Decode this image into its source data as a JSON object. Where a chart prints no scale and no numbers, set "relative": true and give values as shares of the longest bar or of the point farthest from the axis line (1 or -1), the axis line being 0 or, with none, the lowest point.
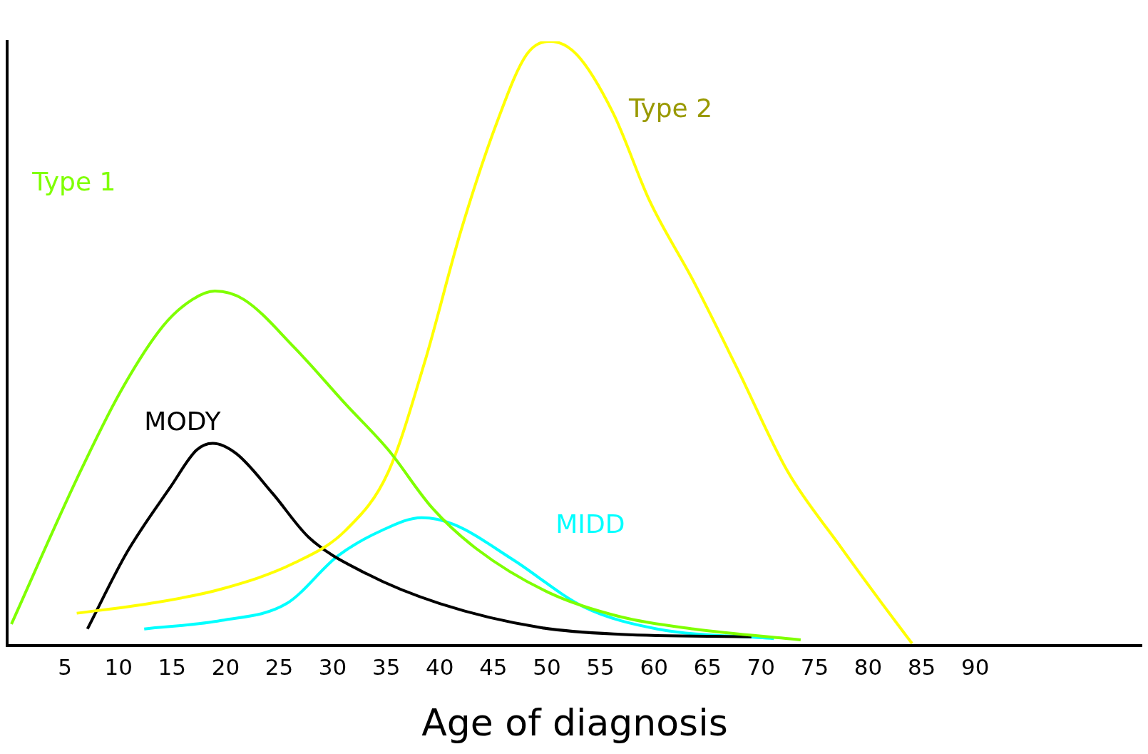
{
  "chart_data": {
    "type": "line",
    "xlabel": "Age of diagnosis",
    "relative": true,
    "xlim": [
      -0.4,
      105.6
    ],
    "xticks": [
      5,
      10,
      15,
      20,
      25,
      30,
      35,
      40,
      45,
      50,
      55,
      60,
      65,
      70,
      75,
      80,
      85,
      90
    ],
    "grid": false,
    "legend": false,
    "marker": "none",
    "line_style": "solid",
    "series": [
      {
        "name": "Type 1",
        "color": "#7fff00",
        "x": [
          0,
          6.1,
          10.2,
          14.2,
          16.9,
          19.0,
          21.7,
          26.4,
          31.2,
          35.2,
          39.3,
          43.4,
          50.2,
          56.9,
          63.7,
          73.7
        ],
        "values": [
          0.036,
          0.276,
          0.421,
          0.53,
          0.573,
          0.587,
          0.573,
          0.494,
          0.4,
          0.324,
          0.228,
          0.161,
          0.088,
          0.048,
          0.028,
          0.01
        ]
      },
      {
        "name": "Type 2",
        "color": "#ffff00",
        "x": [
          6.1,
          12.9,
          19.6,
          26.4,
          31.2,
          35.2,
          38.6,
          42.0,
          45.4,
          48.1,
          50.3,
          52.8,
          56.2,
          59.6,
          63.7,
          67.8,
          72.5,
          77.3,
          81.3,
          84.1
        ],
        "values": [
          0.054,
          0.07,
          0.094,
          0.137,
          0.191,
          0.288,
          0.47,
          0.688,
          0.869,
          0.978,
          1,
          0.978,
          0.881,
          0.736,
          0.603,
          0.458,
          0.288,
          0.167,
          0.07,
          0.004
        ]
      },
      {
        "name": "MODY",
        "color": "#000000",
        "x": [
          7.1,
          10.8,
          14.9,
          17.3,
          18.8,
          21.0,
          24.4,
          27.8,
          33.2,
          40.0,
          49.5,
          56.9,
          69.1
        ],
        "values": [
          0.028,
          0.155,
          0.264,
          0.324,
          0.335,
          0.318,
          0.252,
          0.179,
          0.119,
          0.07,
          0.03,
          0.019,
          0.015
        ]
      },
      {
        "name": "MIDD",
        "color": "#00ffff",
        "x": [
          12.4,
          19.6,
          25.7,
          30.5,
          34.6,
          38.3,
          41.3,
          46.8,
          53.5,
          60.3,
          71.2
        ],
        "values": [
          0.028,
          0.042,
          0.07,
          0.149,
          0.191,
          0.212,
          0.201,
          0.143,
          0.064,
          0.028,
          0.012
        ]
      }
    ]
  }
}
